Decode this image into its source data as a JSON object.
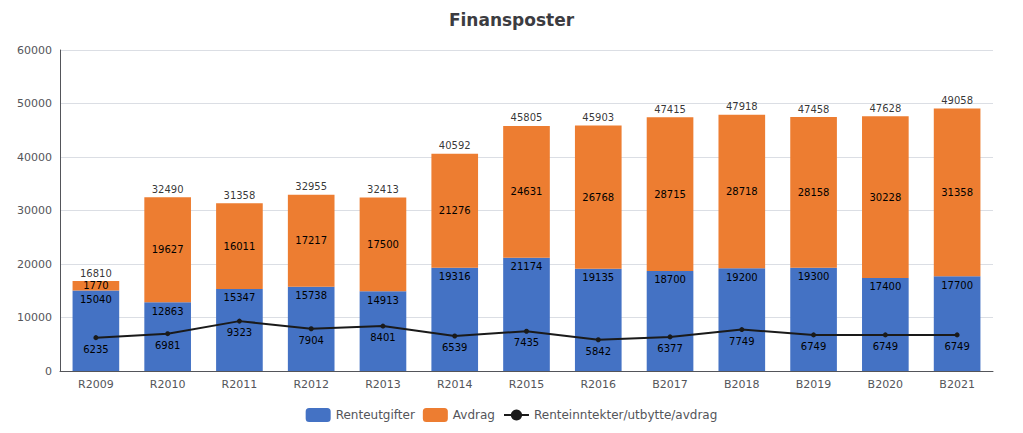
{
  "chart_data": {
    "type": "bar",
    "title": "Finansposter",
    "categories": [
      "R2009",
      "R2010",
      "R2011",
      "R2012",
      "R2013",
      "R2014",
      "R2015",
      "R2016",
      "B2017",
      "B2018",
      "B2019",
      "B2020",
      "B2021"
    ],
    "series": [
      {
        "name": "Renteutgifter",
        "type": "bar",
        "color": "#4472C4",
        "values": [
          15040,
          12863,
          15347,
          15738,
          14913,
          19316,
          21174,
          19135,
          18700,
          19200,
          19300,
          17400,
          17700
        ]
      },
      {
        "name": "Avdrag",
        "type": "bar",
        "color": "#ED7D31",
        "values": [
          1770,
          19627,
          16011,
          17217,
          17500,
          21276,
          24631,
          26768,
          28715,
          28718,
          28158,
          30228,
          31358
        ]
      },
      {
        "name": "Renteinntekter/utbytte/avdrag",
        "type": "line",
        "color": "#1a1a1a",
        "marker": "circle",
        "values": [
          6235,
          6981,
          9323,
          7904,
          8401,
          6539,
          7435,
          5842,
          6377,
          7749,
          6749,
          6749,
          6749
        ]
      }
    ],
    "totals": [
      16810,
      32490,
      31358,
      32955,
      32413,
      40592,
      45805,
      45903,
      47415,
      47918,
      47458,
      47628,
      49058
    ],
    "stacked": true,
    "data_labels": true,
    "ylim": [
      0,
      60000
    ],
    "yticks": [
      0,
      10000,
      20000,
      30000,
      40000,
      50000,
      60000
    ],
    "grid": true,
    "legend": "bottom"
  }
}
